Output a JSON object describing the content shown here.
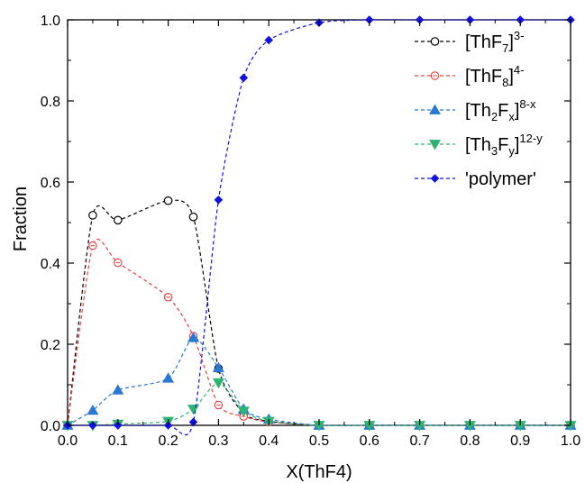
{
  "chart_data": {
    "type": "line",
    "title": "",
    "xlabel": "X(ThF4)",
    "ylabel": "Fraction",
    "xlim": [
      0.0,
      1.0
    ],
    "ylim": [
      0.0,
      1.0
    ],
    "xticks": [
      "0.0",
      "0.1",
      "0.2",
      "0.3",
      "0.4",
      "0.5",
      "0.6",
      "0.7",
      "0.8",
      "0.9",
      "1.0"
    ],
    "yticks": [
      "0.0",
      "0.2",
      "0.4",
      "0.6",
      "0.8",
      "1.0"
    ],
    "grid": false,
    "legend_position": "top-right",
    "series": [
      {
        "name": "[ThF7]3-",
        "legend": {
          "base": "[ThF",
          "sub": "7",
          "close": "]",
          "sup": "3-"
        },
        "color": "#000000",
        "marker": "open-circle",
        "x": [
          0.0,
          0.05,
          0.1,
          0.2,
          0.25,
          0.3,
          0.35,
          0.4,
          0.5,
          0.6,
          0.7,
          0.8,
          0.9,
          1.0
        ],
        "values": [
          0.0,
          0.518,
          0.506,
          0.554,
          0.514,
          0.14,
          0.03,
          0.01,
          0.0,
          0.0,
          0.0,
          0.0,
          0.0,
          0.0
        ]
      },
      {
        "name": "[ThF8]4-",
        "legend": {
          "base": "[ThF",
          "sub": "8",
          "close": "]",
          "sup": "4-"
        },
        "color": "#e8403e",
        "marker": "open-circle-dot",
        "x": [
          0.0,
          0.05,
          0.1,
          0.2,
          0.25,
          0.3,
          0.35,
          0.4,
          0.5,
          0.6,
          0.7,
          0.8,
          0.9,
          1.0
        ],
        "values": [
          0.0,
          0.443,
          0.401,
          0.316,
          0.22,
          0.05,
          0.022,
          0.008,
          0.0,
          0.0,
          0.0,
          0.0,
          0.0,
          0.0
        ]
      },
      {
        "name": "[Th2Fx]8-x",
        "legend": {
          "base": "[Th",
          "sub": "2",
          "mid": "F",
          "sub2": "x",
          "close": "]",
          "sup": "8-x"
        },
        "color": "#2878d4",
        "marker": "filled-triangle-up",
        "x": [
          0.0,
          0.05,
          0.1,
          0.2,
          0.25,
          0.3,
          0.35,
          0.4,
          0.5,
          0.6,
          0.7,
          0.8,
          0.9,
          1.0
        ],
        "values": [
          0.0,
          0.037,
          0.087,
          0.116,
          0.216,
          0.142,
          0.04,
          0.015,
          0.0,
          0.0,
          0.0,
          0.0,
          0.0,
          0.0
        ]
      },
      {
        "name": "[Th3Fy]12-y",
        "legend": {
          "base": "[Th",
          "sub": "3",
          "mid": "F",
          "sub2": "y",
          "close": "]",
          "sup": "12-y"
        },
        "color": "#2fb373",
        "marker": "filled-triangle-down",
        "x": [
          0.0,
          0.05,
          0.1,
          0.2,
          0.25,
          0.3,
          0.35,
          0.4,
          0.5,
          0.6,
          0.7,
          0.8,
          0.9,
          1.0
        ],
        "values": [
          0.0,
          0.0,
          0.003,
          0.01,
          0.04,
          0.105,
          0.035,
          0.01,
          0.0,
          0.0,
          0.0,
          0.0,
          0.0,
          0.0
        ]
      },
      {
        "name": "'polymer'",
        "legend": {
          "base": "'polymer'"
        },
        "color": "#1010e0",
        "marker": "filled-diamond",
        "x": [
          0.0,
          0.05,
          0.1,
          0.2,
          0.25,
          0.3,
          0.35,
          0.4,
          0.5,
          0.6,
          0.7,
          0.8,
          0.9,
          1.0
        ],
        "values": [
          0.0,
          0.0,
          0.0,
          0.0,
          0.008,
          0.556,
          0.857,
          0.95,
          0.993,
          1.0,
          1.0,
          1.0,
          1.0,
          1.0
        ]
      }
    ]
  }
}
